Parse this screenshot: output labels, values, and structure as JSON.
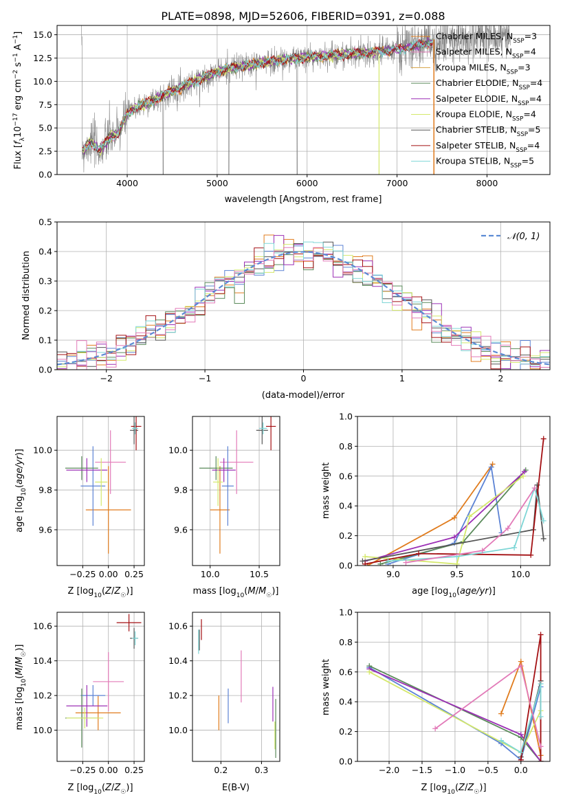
{
  "figure_title": "PLATE=0898, MJD=52606, FIBERID=0391, z=0.088",
  "colors": {
    "orange": "#e07b1c",
    "blue": "#5b82d4",
    "green": "#5a8a5a",
    "purple": "#9b2fb5",
    "yellow": "#d4e86a",
    "darkgray": "#555555",
    "red": "#a30f12",
    "cyan": "#7dd6d6",
    "pink": "#e27ab8",
    "gray": "#808080",
    "gaussian": "#5b8ad4"
  },
  "chart_data": [
    {
      "id": "spectrum",
      "type": "line",
      "title": "PLATE=0898, MJD=52606, FIBERID=0391, z=0.088",
      "xlabel": "wavelength [Angstrom, rest frame]",
      "ylabel": "Flux [f_λ 10^-17 erg cm^-2 s^-1 A^-1]",
      "xlim": [
        3220,
        8700
      ],
      "ylim": [
        0,
        16
      ],
      "xticks": [
        "4000",
        "5000",
        "6000",
        "7000",
        "8000"
      ],
      "yticks": [
        "0.0",
        "2.5",
        "5.0",
        "7.5",
        "10.0",
        "12.5",
        "15.0"
      ],
      "grid": true,
      "legend_position": "right",
      "series": [
        {
          "name": "Chabrier MILES, N_SSP=3",
          "color": "#e07b1c"
        },
        {
          "name": "Salpeter MILES, N_SSP=4",
          "color": "#e27ab8"
        },
        {
          "name": "Kroupa MILES, N_SSP=3",
          "color": "#d4a040"
        },
        {
          "name": "Chabrier ELODIE, N_SSP=4",
          "color": "#5a8a5a"
        },
        {
          "name": "Salpeter ELODIE, N_SSP=4",
          "color": "#9b2fb5"
        },
        {
          "name": "Kroupa ELODIE, N_SSP=4",
          "color": "#d4e86a"
        },
        {
          "name": "Chabrier STELIB, N_SSP=5",
          "color": "#555555"
        },
        {
          "name": "Salpeter STELIB, N_SSP=4",
          "color": "#a30f12"
        },
        {
          "name": "Kroupa STELIB, N_SSP=5",
          "color": "#7dd6d6"
        }
      ],
      "legend_labels": [
        {
          "main": "Chabrier MILES, N",
          "sub": "SSP",
          "tail": "=3"
        },
        {
          "main": "Salpeter MILES, N",
          "sub": "SSP",
          "tail": "=4"
        },
        {
          "main": "Kroupa MILES, N",
          "sub": "SSP",
          "tail": "=3"
        },
        {
          "main": "Chabrier ELODIE, N",
          "sub": "SSP",
          "tail": "=4"
        },
        {
          "main": "Salpeter ELODIE, N",
          "sub": "SSP",
          "tail": "=4"
        },
        {
          "main": "Kroupa ELODIE, N",
          "sub": "SSP",
          "tail": "=4"
        },
        {
          "main": "Chabrier STELIB, N",
          "sub": "SSP",
          "tail": "=5"
        },
        {
          "main": "Salpeter STELIB, N",
          "sub": "SSP",
          "tail": "=4"
        },
        {
          "main": "Kroupa STELIB, N",
          "sub": "SSP",
          "tail": "=5"
        }
      ],
      "continuum": {
        "x": [
          3500,
          3600,
          3700,
          3800,
          3900,
          4000,
          4100,
          4300,
          4500,
          4800,
          5000,
          5200,
          5500,
          5800,
          6000,
          6300,
          6600,
          7000,
          7400,
          7800,
          8200
        ],
        "y": [
          2.5,
          3.5,
          2.6,
          4.0,
          4.4,
          6.5,
          7.2,
          8.0,
          9.0,
          10.2,
          11.0,
          11.5,
          12.0,
          12.4,
          12.6,
          12.8,
          13.0,
          13.4,
          14.2,
          14.6,
          14.8
        ]
      }
    },
    {
      "id": "residuals",
      "type": "step",
      "xlabel": "(data-model)/error",
      "ylabel": "Normed distribution",
      "xlim": [
        -2.5,
        2.5
      ],
      "ylim": [
        0,
        0.5
      ],
      "xticks": [
        "−2",
        "−1",
        "0",
        "1",
        "2"
      ],
      "yticks": [
        "0.0",
        "0.1",
        "0.2",
        "0.3",
        "0.4",
        "0.5"
      ],
      "grid": true,
      "legend_position": "upper right",
      "gaussian_label": "𝒩(0, 1)",
      "bin_width": 0.1
    },
    {
      "id": "age_vs_Z",
      "type": "errorbar",
      "xlabel": "Z [log10(Z/Z☉)]",
      "ylabel": "age [log10(age/yr)]",
      "xlim": [
        -0.5,
        0.35
      ],
      "ylim": [
        9.42,
        10.17
      ],
      "xticks": [
        "−0.25",
        "0.00",
        "0.25"
      ],
      "yticks": [
        "9.6",
        "9.8",
        "10.0"
      ],
      "points": [
        {
          "color": "#e07b1c",
          "x": 0.0,
          "xerr": 0.22,
          "y": 9.7,
          "yerr": 0.22
        },
        {
          "color": "#e27ab8",
          "x": 0.02,
          "xerr": 0.15,
          "y": 9.94,
          "yerr": 0.16
        },
        {
          "color": "#5b82d4",
          "x": -0.15,
          "xerr": 0.12,
          "y": 9.82,
          "yerr": 0.2
        },
        {
          "color": "#5a8a5a",
          "x": -0.26,
          "xerr": 0.16,
          "y": 9.91,
          "yerr": 0.06
        },
        {
          "color": "#9b2fb5",
          "x": -0.21,
          "xerr": 0.2,
          "y": 9.9,
          "yerr": 0.06
        },
        {
          "color": "#d4e86a",
          "x": -0.07,
          "xerr": 0.06,
          "y": 9.84,
          "yerr": 0.12
        },
        {
          "color": "#555555",
          "x": 0.25,
          "xerr": 0.04,
          "y": 10.1,
          "yerr": 0.07
        },
        {
          "color": "#a30f12",
          "x": 0.27,
          "xerr": 0.05,
          "y": 10.12,
          "yerr": 0.12
        },
        {
          "color": "#7dd6d6",
          "x": 0.26,
          "xerr": 0.03,
          "y": 10.11,
          "yerr": 0.03
        }
      ]
    },
    {
      "id": "age_vs_mass",
      "type": "errorbar",
      "xlabel": "mass [log10(M/M☉)]",
      "ylabel": "",
      "xlim": [
        9.82,
        10.71
      ],
      "ylim": [
        9.42,
        10.17
      ],
      "xticks": [
        "10.0",
        "10.5"
      ],
      "yticks": [
        "9.6",
        "9.8",
        "10.0"
      ],
      "points": [
        {
          "color": "#e07b1c",
          "x": 10.1,
          "xerr": 0.1,
          "y": 9.7,
          "yerr": 0.22
        },
        {
          "color": "#e27ab8",
          "x": 10.27,
          "xerr": 0.17,
          "y": 9.94,
          "yerr": 0.16
        },
        {
          "color": "#5b82d4",
          "x": 10.18,
          "xerr": 0.06,
          "y": 9.82,
          "yerr": 0.2
        },
        {
          "color": "#5a8a5a",
          "x": 10.06,
          "xerr": 0.17,
          "y": 9.91,
          "yerr": 0.06
        },
        {
          "color": "#9b2fb5",
          "x": 10.14,
          "xerr": 0.12,
          "y": 9.9,
          "yerr": 0.06
        },
        {
          "color": "#d4e86a",
          "x": 10.08,
          "xerr": 0.05,
          "y": 9.84,
          "yerr": 0.12
        },
        {
          "color": "#555555",
          "x": 10.53,
          "xerr": 0.06,
          "y": 10.1,
          "yerr": 0.07
        },
        {
          "color": "#a30f12",
          "x": 10.62,
          "xerr": 0.05,
          "y": 10.12,
          "yerr": 0.12
        },
        {
          "color": "#7dd6d6",
          "x": 10.54,
          "xerr": 0.04,
          "y": 10.11,
          "yerr": 0.03
        }
      ]
    },
    {
      "id": "mass_vs_Z",
      "type": "errorbar",
      "xlabel": "Z [log10(Z/Z☉)]",
      "ylabel": "mass [log10(M/M☉)]",
      "xlim": [
        -0.5,
        0.35
      ],
      "ylim": [
        9.82,
        10.68
      ],
      "xticks": [
        "−0.25",
        "0.00",
        "0.25"
      ],
      "yticks": [
        "10.0",
        "10.2",
        "10.4",
        "10.6"
      ],
      "points": [
        {
          "color": "#e07b1c",
          "x": -0.1,
          "xerr": 0.22,
          "y": 10.1,
          "yerr": 0.1
        },
        {
          "color": "#e27ab8",
          "x": 0.0,
          "xerr": 0.15,
          "y": 10.28,
          "yerr": 0.17
        },
        {
          "color": "#5b82d4",
          "x": -0.15,
          "xerr": 0.12,
          "y": 10.2,
          "yerr": 0.06
        },
        {
          "color": "#5a8a5a",
          "x": -0.26,
          "xerr": 0.16,
          "y": 10.07,
          "yerr": 0.17
        },
        {
          "color": "#9b2fb5",
          "x": -0.21,
          "xerr": 0.2,
          "y": 10.14,
          "yerr": 0.12
        },
        {
          "color": "#d4e86a",
          "x": -0.23,
          "xerr": 0.18,
          "y": 10.07,
          "yerr": 0.06
        },
        {
          "color": "#555555",
          "x": 0.25,
          "xerr": 0.04,
          "y": 10.53,
          "yerr": 0.06
        },
        {
          "color": "#a30f12",
          "x": 0.2,
          "xerr": 0.12,
          "y": 10.62,
          "yerr": 0.05
        },
        {
          "color": "#7dd6d6",
          "x": 0.26,
          "xerr": 0.03,
          "y": 10.53,
          "yerr": 0.04
        }
      ]
    },
    {
      "id": "mass_vs_EBV",
      "type": "errorbar",
      "xlabel": "E(B-V)",
      "ylabel": "",
      "xlim": [
        0.13,
        0.345
      ],
      "ylim": [
        9.82,
        10.68
      ],
      "xticks": [
        "0.2",
        "0.3"
      ],
      "yticks": [
        "10.0",
        "10.2",
        "10.4",
        "10.6"
      ],
      "points": [
        {
          "color": "#e07b1c",
          "x": 0.195,
          "xerr": 0,
          "y": 10.1,
          "yerr": 0.1
        },
        {
          "color": "#e27ab8",
          "x": 0.25,
          "xerr": 0,
          "y": 10.31,
          "yerr": 0.15
        },
        {
          "color": "#5b82d4",
          "x": 0.218,
          "xerr": 0,
          "y": 10.14,
          "yerr": 0.1
        },
        {
          "color": "#5a8a5a",
          "x": 0.335,
          "xerr": 0,
          "y": 10.01,
          "yerr": 0.17
        },
        {
          "color": "#9b2fb5",
          "x": 0.328,
          "xerr": 0,
          "y": 10.15,
          "yerr": 0.1
        },
        {
          "color": "#d4e86a",
          "x": 0.333,
          "xerr": 0,
          "y": 9.97,
          "yerr": 0.08
        },
        {
          "color": "#555555",
          "x": 0.147,
          "xerr": 0,
          "y": 10.52,
          "yerr": 0.06
        },
        {
          "color": "#a30f12",
          "x": 0.152,
          "xerr": 0,
          "y": 10.58,
          "yerr": 0.06
        },
        {
          "color": "#7dd6d6",
          "x": 0.145,
          "xerr": 0,
          "y": 10.51,
          "yerr": 0.07
        }
      ]
    },
    {
      "id": "weight_vs_age",
      "type": "line",
      "xlabel": "age [log10(age/yr)]",
      "ylabel": "mass weight",
      "xlim": [
        8.72,
        10.23
      ],
      "ylim": [
        0,
        1.0
      ],
      "xticks": [
        "9.0",
        "9.5",
        "10.0"
      ],
      "yticks": [
        "0.0",
        "0.2",
        "0.4",
        "0.6",
        "0.8",
        "1.0"
      ],
      "grid": true,
      "series": [
        {
          "color": "#e07b1c",
          "x": [
            8.8,
            9.48,
            9.78
          ],
          "y": [
            0.0,
            0.32,
            0.68
          ]
        },
        {
          "color": "#5b82d4",
          "x": [
            8.96,
            9.48,
            9.77,
            9.85
          ],
          "y": [
            0.01,
            0.15,
            0.66,
            0.22
          ]
        },
        {
          "color": "#5a8a5a",
          "x": [
            8.9,
            9.55,
            10.04
          ],
          "y": [
            0.01,
            0.16,
            0.64
          ]
        },
        {
          "color": "#9b2fb5",
          "x": [
            8.78,
            9.48,
            10.03
          ],
          "y": [
            0.03,
            0.19,
            0.63
          ]
        },
        {
          "color": "#d4e86a",
          "x": [
            8.78,
            9.5,
            9.6,
            10.02
          ],
          "y": [
            0.06,
            0.01,
            0.33,
            0.6
          ]
        },
        {
          "color": "#555555",
          "x": [
            8.76,
            10.1,
            10.13,
            10.18
          ],
          "y": [
            0.03,
            0.24,
            0.54,
            0.18
          ]
        },
        {
          "color": "#a30f12",
          "x": [
            8.78,
            9.2,
            10.08,
            10.18
          ],
          "y": [
            0.01,
            0.08,
            0.07,
            0.85
          ]
        },
        {
          "color": "#7dd6d6",
          "x": [
            8.96,
            9.5,
            9.95,
            10.11,
            10.18
          ],
          "y": [
            0.03,
            0.06,
            0.12,
            0.52,
            0.3
          ]
        },
        {
          "color": "#e27ab8",
          "x": [
            9.1,
            9.7,
            9.9,
            10.11
          ],
          "y": [
            0.02,
            0.1,
            0.25,
            0.52
          ]
        }
      ]
    },
    {
      "id": "weight_vs_Z",
      "type": "line",
      "xlabel": "Z [log10(Z/Z☉)]",
      "ylabel": "mass weight",
      "xlim": [
        -2.48,
        0.44
      ],
      "ylim": [
        0,
        1.0
      ],
      "xticks": [
        "−2.0",
        "−1.5",
        "−1.0",
        "−0.5",
        "0.0"
      ],
      "yticks": [
        "0.0",
        "0.2",
        "0.4",
        "0.6",
        "0.8",
        "1.0"
      ],
      "grid": true,
      "series": [
        {
          "color": "#e07b1c",
          "x": [
            -0.3,
            0.0,
            0.3,
            0.3
          ],
          "y": [
            0.32,
            0.67,
            0.04,
            0.0
          ]
        },
        {
          "color": "#5b82d4",
          "x": [
            -2.3,
            -0.3,
            0.0,
            0.3
          ],
          "y": [
            0.63,
            0.12,
            0.01,
            0.5
          ]
        },
        {
          "color": "#5a8a5a",
          "x": [
            -2.3,
            0.0,
            0.3
          ],
          "y": [
            0.64,
            0.16,
            0.0
          ]
        },
        {
          "color": "#9b2fb5",
          "x": [
            -2.3,
            0.0,
            0.3
          ],
          "y": [
            0.62,
            0.18,
            0.0
          ]
        },
        {
          "color": "#d4e86a",
          "x": [
            -2.3,
            0.0,
            0.3
          ],
          "y": [
            0.6,
            0.06,
            0.34
          ]
        },
        {
          "color": "#555555",
          "x": [
            0.0,
            0.3,
            0.3
          ],
          "y": [
            0.03,
            0.54,
            0.0
          ]
        },
        {
          "color": "#a30f12",
          "x": [
            0.0,
            0.3,
            0.3
          ],
          "y": [
            0.01,
            0.85,
            0.0
          ]
        },
        {
          "color": "#7dd6d6",
          "x": [
            -0.3,
            0.0,
            0.3,
            0.3
          ],
          "y": [
            0.14,
            0.06,
            0.52,
            0.3
          ]
        },
        {
          "color": "#e27ab8",
          "x": [
            -1.3,
            0.0,
            0.3
          ],
          "y": [
            0.22,
            0.64,
            0.1
          ]
        }
      ]
    }
  ]
}
